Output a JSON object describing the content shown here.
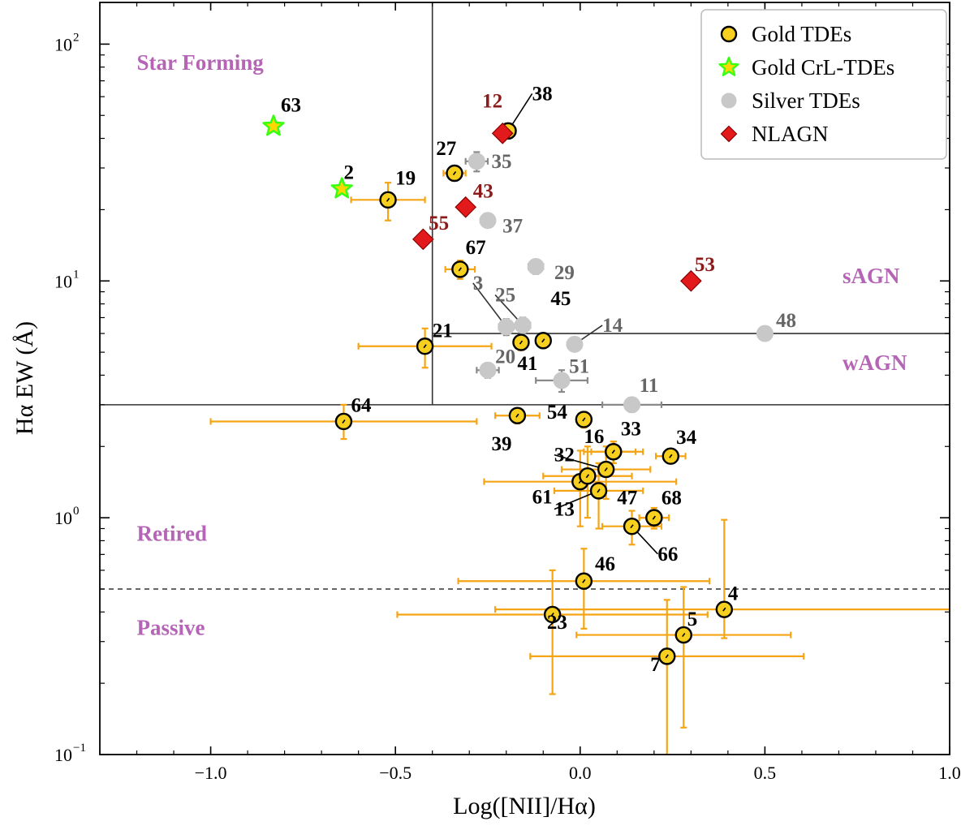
{
  "chart_data": {
    "type": "scatter",
    "xlabel": "Log([NII]/Hα)",
    "ylabel": "Hα EW (Å)",
    "xlim": [
      -1.3,
      1.0
    ],
    "ylim": [
      0.1,
      150
    ],
    "yscale": "log",
    "xticks": [
      -1.0,
      -0.5,
      0.0,
      0.5,
      1.0
    ],
    "xtick_labels": [
      "−1.0",
      "−0.5",
      "0.0",
      "0.5",
      "1.0"
    ],
    "ytick_labels": {
      "mantissa": "10",
      "exponents": [
        "−1",
        "0",
        "1",
        "2"
      ]
    },
    "grid": false,
    "legend_position": "top-right",
    "legend": [
      {
        "name": "Gold TDEs",
        "marker": "circle",
        "color": "#f7cf1f"
      },
      {
        "name": "Gold CrL-TDEs",
        "marker": "star",
        "color": "#ffd700",
        "edge": "#39ff14"
      },
      {
        "name": "Silver TDEs",
        "marker": "circle",
        "color": "#c8c8c8"
      },
      {
        "name": "NLAGN",
        "marker": "diamond",
        "color": "#e31a1c"
      }
    ],
    "dividers": {
      "vertical_x": -0.4,
      "horizontal_upper_y": 6,
      "horizontal_mid_y": 3,
      "horizontal_dashed_y": 0.5
    },
    "regions": [
      {
        "label": "Star Forming",
        "x": -1.2,
        "y": 78
      },
      {
        "label": "sAGN",
        "x": 0.71,
        "y": 9.8
      },
      {
        "label": "wAGN",
        "x": 0.71,
        "y": 4.2
      },
      {
        "label": "Retired",
        "x": -1.2,
        "y": 0.8
      },
      {
        "label": "Passive",
        "x": -1.2,
        "y": 0.32
      }
    ],
    "series": [
      {
        "name": "Gold TDEs",
        "points": [
          {
            "id": "38",
            "x": -0.195,
            "y": 43,
            "xerr": 0.02,
            "yerr": [
              3,
              3
            ],
            "lx": -0.13,
            "ly": 58,
            "leader": true
          },
          {
            "id": "27",
            "x": -0.34,
            "y": 28.5,
            "xerr": 0.03,
            "yerr": [
              2,
              2
            ],
            "lx": -0.39,
            "ly": 34
          },
          {
            "id": "19",
            "x": -0.52,
            "y": 22,
            "xerr": 0.1,
            "yerr": [
              4,
              4
            ],
            "lx": -0.5,
            "ly": 25.5
          },
          {
            "id": "67",
            "x": -0.325,
            "y": 11.2,
            "xerr": 0.04,
            "yerr": [
              1,
              1
            ],
            "lx": -0.31,
            "ly": 13
          },
          {
            "id": "45",
            "x": -0.1,
            "y": 5.6,
            "xerr": 0.02,
            "yerr": [
              0.4,
              0.4
            ],
            "lx": -0.08,
            "ly": 7.9
          },
          {
            "id": "41",
            "x": -0.16,
            "y": 5.5,
            "xerr": 0.02,
            "yerr": [
              0.4,
              0.4
            ],
            "lx": -0.17,
            "ly": 4.2
          },
          {
            "id": "21",
            "x": -0.42,
            "y": 5.3,
            "xerr": 0.18,
            "yerr": [
              1,
              1
            ],
            "lx": -0.4,
            "ly": 5.8
          },
          {
            "id": "64",
            "x": -0.64,
            "y": 2.55,
            "xerr": 0.36,
            "yerr": [
              0.4,
              0.45
            ],
            "lx": -0.62,
            "ly": 2.8
          },
          {
            "id": "39",
            "x": -0.17,
            "y": 2.7,
            "xerr": 0.06,
            "yerr": [
              0.2,
              0.2
            ],
            "lx": -0.24,
            "ly": 1.93
          },
          {
            "id": "54",
            "x": 0.01,
            "y": 2.6,
            "xerr": 0.02,
            "yerr": [
              0.2,
              0.2
            ],
            "lx": -0.09,
            "ly": 2.62
          },
          {
            "id": "16",
            "x": 0.09,
            "y": 1.9,
            "xerr": 0.08,
            "yerr": [
              0.2,
              0.2
            ],
            "lx": 0.01,
            "ly": 2.07
          },
          {
            "id": "33",
            "x": 0.09,
            "y": 1.9,
            "xerr": 0.06,
            "yerr": [
              0.2,
              0.2
            ],
            "lx": 0.11,
            "ly": 2.23,
            "hidden": true
          },
          {
            "id": "34",
            "x": 0.245,
            "y": 1.82,
            "xerr": 0.04,
            "yerr": [
              0.1,
              0.1
            ],
            "lx": 0.26,
            "ly": 2.05
          },
          {
            "id": "32",
            "x": 0.07,
            "y": 1.6,
            "xerr": 0.12,
            "yerr": [
              0.4,
              0.4
            ],
            "lx": -0.07,
            "ly": 1.73,
            "leader": true
          },
          {
            "id": "61",
            "x": 0.0,
            "y": 1.42,
            "xerr": 0.26,
            "yerr": [
              0.5,
              0.5
            ],
            "lx": -0.13,
            "ly": 1.15
          },
          {
            "id": "13",
            "x": 0.05,
            "y": 1.3,
            "xerr": 0.12,
            "yerr": [
              0.4,
              0.4
            ],
            "lx": -0.07,
            "ly": 1.02,
            "leader": true
          },
          {
            "id": "0x",
            "x": 0.02,
            "y": 1.5,
            "xerr": 0.12,
            "yerr": [
              0.5,
              0.5
            ],
            "hidden_label": true
          },
          {
            "id": "47",
            "x": 0.2,
            "y": 1.0,
            "xerr": 0.04,
            "yerr": [
              0.1,
              0.1
            ],
            "lx": 0.1,
            "ly": 1.14
          },
          {
            "id": "68",
            "x": 0.2,
            "y": 1.0,
            "xerr": 0.04,
            "yerr": [
              0.1,
              0.1
            ],
            "lx": 0.22,
            "ly": 1.14,
            "hidden": true
          },
          {
            "id": "66",
            "x": 0.14,
            "y": 0.92,
            "xerr": 0.08,
            "yerr": [
              0.15,
              0.15
            ],
            "lx": 0.21,
            "ly": 0.66,
            "leader": true
          },
          {
            "id": "46",
            "x": 0.01,
            "y": 0.54,
            "xerr": 0.34,
            "yerr": [
              0.2,
              0.2
            ],
            "lx": 0.04,
            "ly": 0.6
          },
          {
            "id": "23",
            "x": -0.075,
            "y": 0.39,
            "xerr": 0.42,
            "yerr": [
              0.21,
              0.21
            ],
            "lx": -0.09,
            "ly": 0.34
          },
          {
            "id": "4",
            "x": 0.39,
            "y": 0.41,
            "xerr": 0.62,
            "yerr": [
              0.1,
              0.57
            ],
            "lx": 0.4,
            "ly": 0.45
          },
          {
            "id": "5",
            "x": 0.28,
            "y": 0.32,
            "xerr": 0.29,
            "yerr": [
              0.19,
              0.19
            ],
            "lx": 0.29,
            "ly": 0.35
          },
          {
            "id": "7",
            "x": 0.235,
            "y": 0.26,
            "xerr": 0.37,
            "yerr": [
              0.16,
              0.19
            ],
            "lx": 0.19,
            "ly": 0.225
          }
        ]
      },
      {
        "name": "Gold CrL-TDEs",
        "points": [
          {
            "id": "63",
            "x": -0.83,
            "y": 45,
            "lx": -0.81,
            "ly": 52
          },
          {
            "id": "2",
            "x": -0.645,
            "y": 24.5,
            "lx": -0.64,
            "ly": 27
          }
        ]
      },
      {
        "name": "Silver TDEs",
        "points": [
          {
            "id": "35",
            "x": -0.28,
            "y": 32,
            "xerr": 0.03,
            "yerr": [
              3,
              3
            ],
            "lx": -0.24,
            "ly": 30
          },
          {
            "id": "37",
            "x": -0.25,
            "y": 18,
            "lx": -0.21,
            "ly": 16
          },
          {
            "id": "29",
            "x": -0.12,
            "y": 11.5,
            "xerr": 0.02,
            "yerr": [
              0.8,
              0.8
            ],
            "lx": -0.07,
            "ly": 10.2
          },
          {
            "id": "3",
            "x": -0.2,
            "y": 6.4,
            "xerr": 0.02,
            "yerr": [
              0.5,
              0.5
            ],
            "lx": -0.29,
            "ly": 9.2,
            "leader": true
          },
          {
            "id": "25",
            "x": -0.155,
            "y": 6.5,
            "xerr": 0.02,
            "yerr": [
              0.5,
              0.5
            ],
            "lx": -0.23,
            "ly": 8.2,
            "leader": true
          },
          {
            "id": "14",
            "x": -0.015,
            "y": 5.4,
            "lx": 0.06,
            "ly": 6.1,
            "leader": true
          },
          {
            "id": "20",
            "x": -0.25,
            "y": 4.2,
            "xerr": 0.03,
            "yerr": [
              0.3,
              0.3
            ],
            "lx": -0.23,
            "ly": 4.5
          },
          {
            "id": "51",
            "x": -0.05,
            "y": 3.8,
            "xerr": 0.07,
            "yerr": [
              0.4,
              0.4
            ],
            "lx": -0.03,
            "ly": 4.1
          },
          {
            "id": "11",
            "x": 0.14,
            "y": 3.0,
            "xerr": 0.08,
            "yerr": [
              0.2,
              0.2
            ],
            "lx": 0.16,
            "ly": 3.4
          },
          {
            "id": "48",
            "x": 0.5,
            "y": 6.0,
            "lx": 0.53,
            "ly": 6.4
          }
        ]
      },
      {
        "name": "NLAGN",
        "points": [
          {
            "id": "12",
            "x": -0.21,
            "y": 42,
            "lx": -0.265,
            "ly": 54
          },
          {
            "id": "43",
            "x": -0.31,
            "y": 20.5,
            "lx": -0.29,
            "ly": 22.5
          },
          {
            "id": "55",
            "x": -0.425,
            "y": 15,
            "lx": -0.41,
            "ly": 16.5
          },
          {
            "id": "53",
            "x": 0.3,
            "y": 10,
            "lx": 0.31,
            "ly": 11
          }
        ]
      }
    ]
  }
}
